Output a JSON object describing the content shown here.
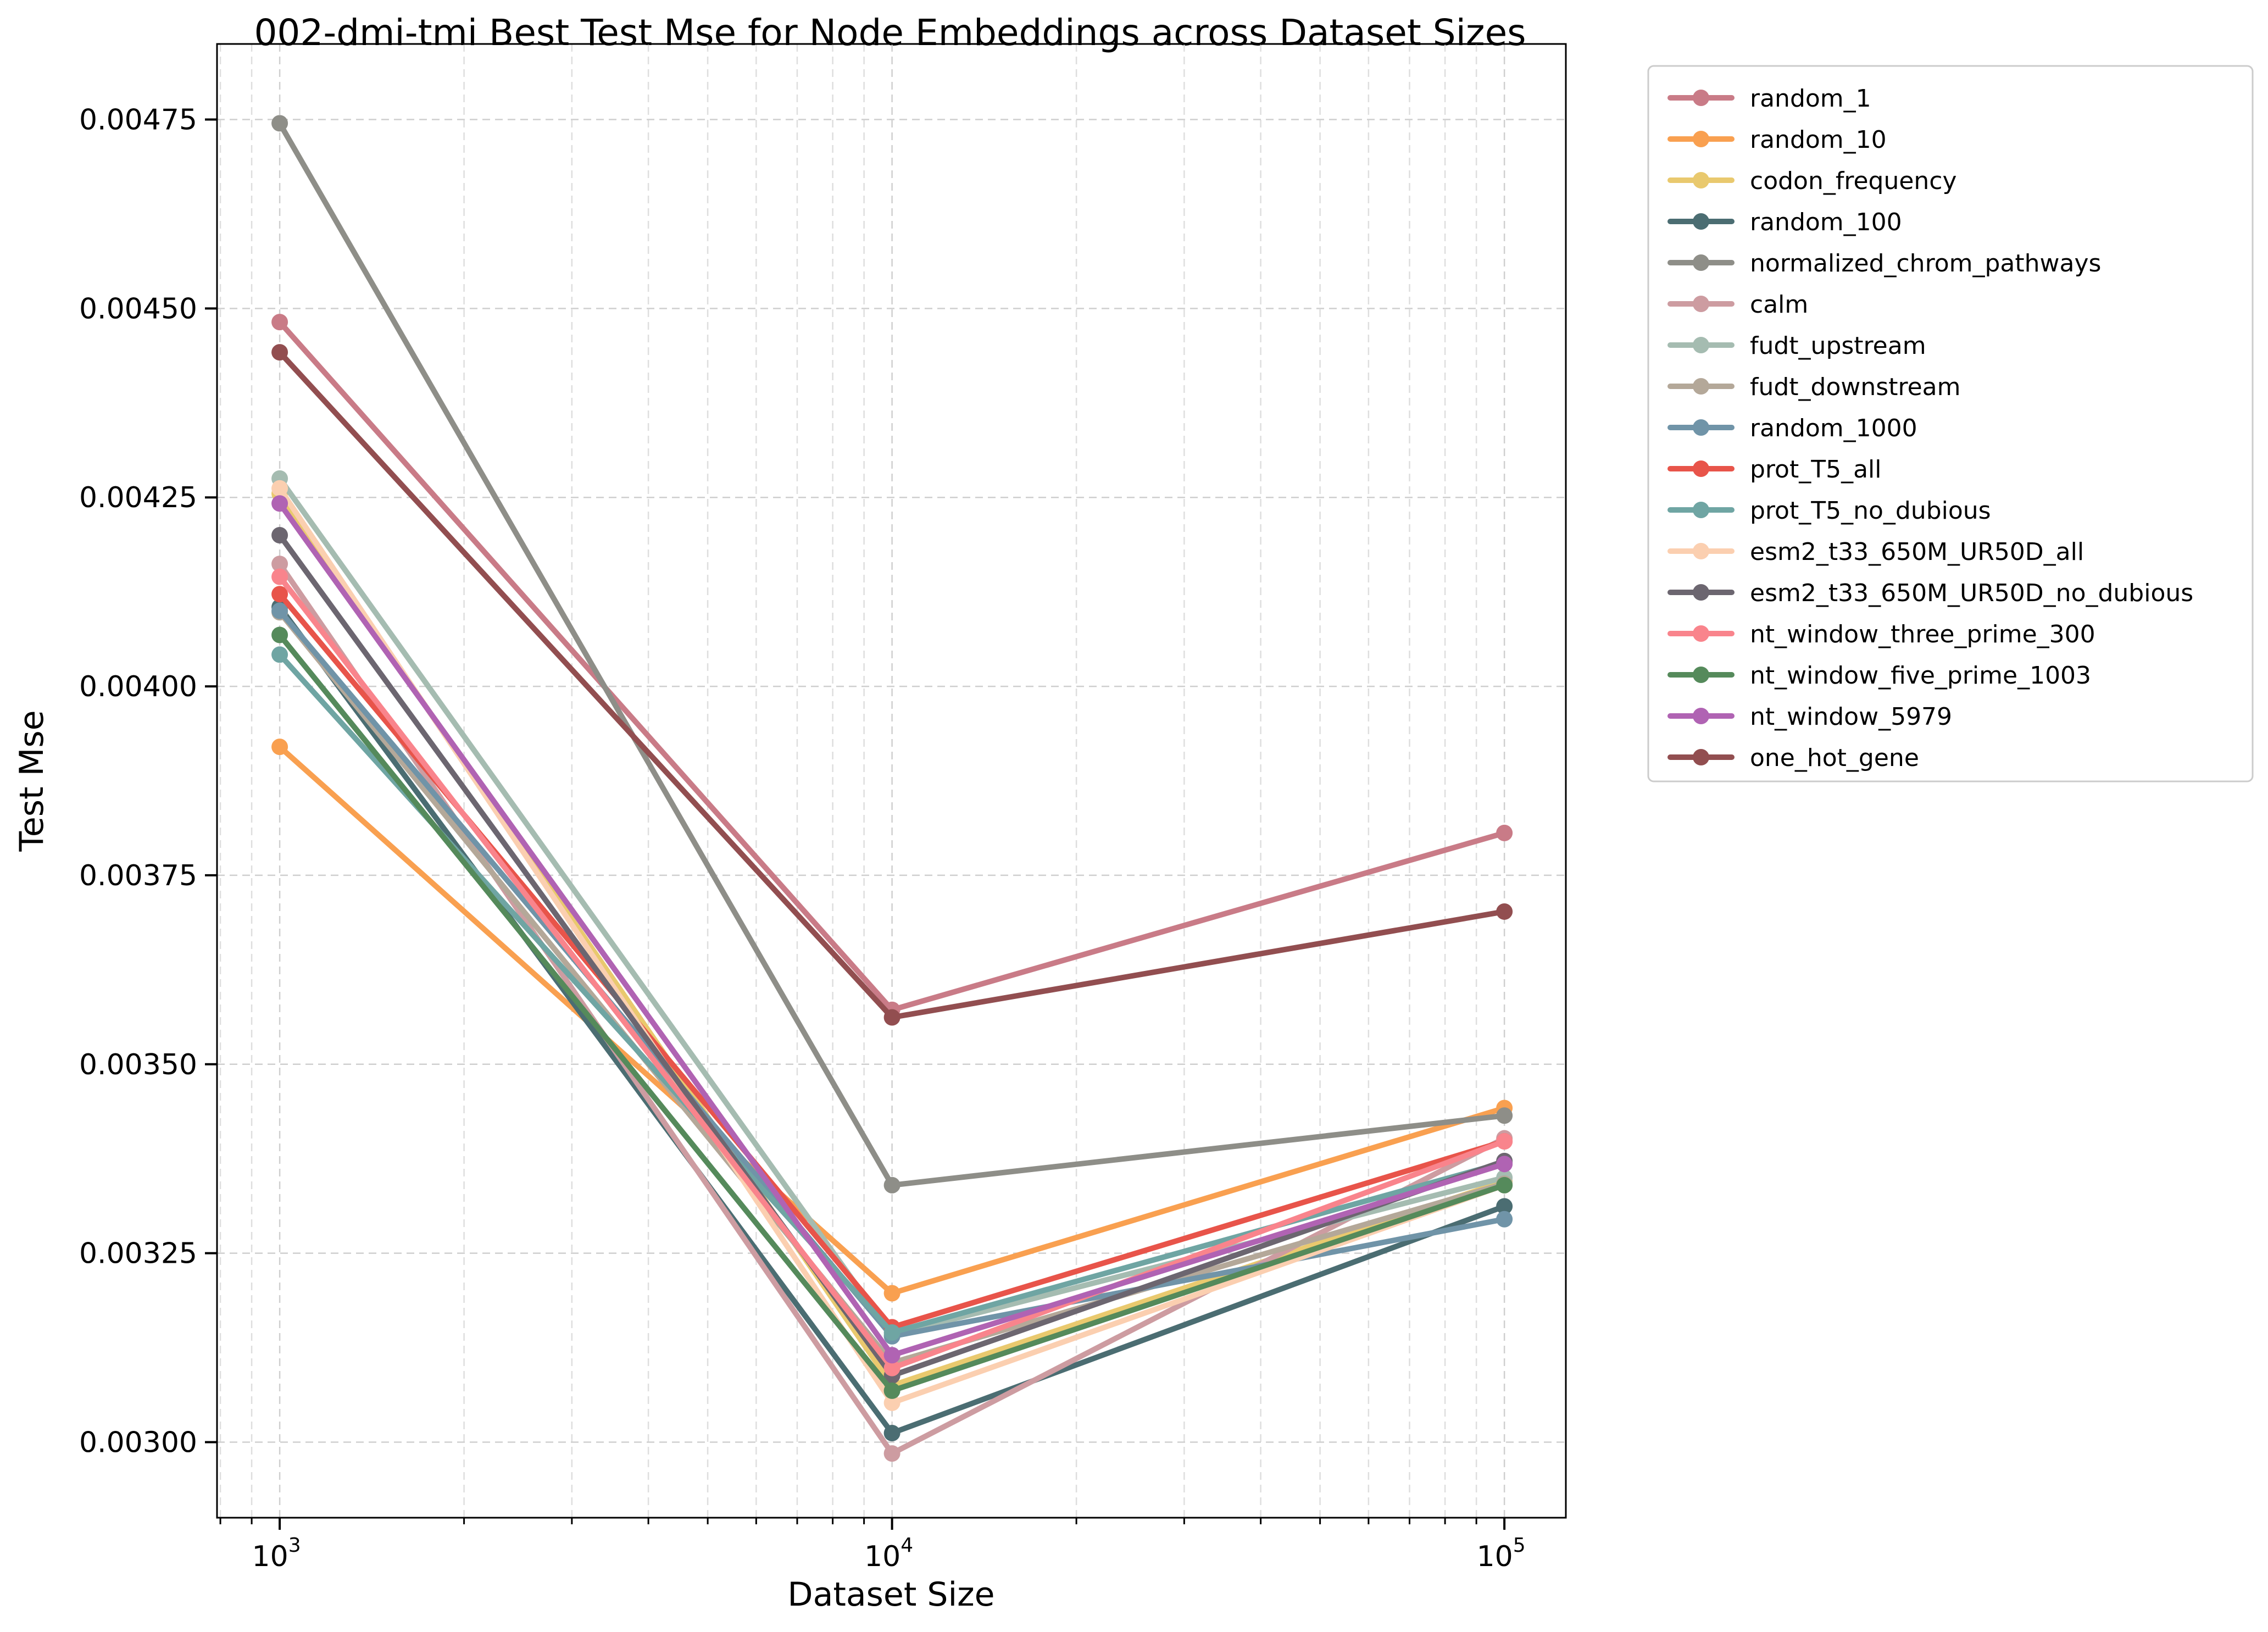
{
  "chart_data": {
    "type": "line",
    "title": "002-dmi-tmi Best Test Mse for Node Embeddings across Dataset Sizes",
    "xlabel": "Dataset Size",
    "ylabel": "Test Mse",
    "x_scale": "log",
    "x": [
      1000,
      10000,
      100000
    ],
    "x_ticks": [
      {
        "base": "10",
        "exp": "3"
      },
      {
        "base": "10",
        "exp": "4"
      },
      {
        "base": "10",
        "exp": "5"
      }
    ],
    "xlim": [
      790,
      126000
    ],
    "ylim": [
      0.0029,
      0.00485
    ],
    "y_ticks": [
      "0.00300",
      "0.00325",
      "0.00350",
      "0.00375",
      "0.00400",
      "0.00425",
      "0.00450",
      "0.00475"
    ],
    "grid": true,
    "legend_position": "outside-right",
    "series": [
      {
        "name": "random_1",
        "color": "#c97b87",
        "values": [
          0.004482,
          0.003572,
          0.003806
        ]
      },
      {
        "name": "random_10",
        "color": "#f9a050",
        "values": [
          0.00392,
          0.003197,
          0.003442
        ]
      },
      {
        "name": "codon_frequency",
        "color": "#e9c96e",
        "values": [
          0.004255,
          0.003075,
          0.003345
        ]
      },
      {
        "name": "random_100",
        "color": "#4b6d72",
        "values": [
          0.004105,
          0.003012,
          0.003312
        ]
      },
      {
        "name": "normalized_chrom_pathways",
        "color": "#8e8e88",
        "values": [
          0.004745,
          0.00334,
          0.003432
        ]
      },
      {
        "name": "calm",
        "color": "#cd9ca1",
        "values": [
          0.004162,
          0.002985,
          0.003402
        ]
      },
      {
        "name": "fudt_upstream",
        "color": "#a5bcb1",
        "values": [
          0.004275,
          0.003142,
          0.00335
        ]
      },
      {
        "name": "fudt_downstream",
        "color": "#b4a899",
        "values": [
          0.004098,
          0.003105,
          0.003342
        ]
      },
      {
        "name": "random_1000",
        "color": "#7094a8",
        "values": [
          0.0041,
          0.00314,
          0.003295
        ]
      },
      {
        "name": "prot_T5_all",
        "color": "#e8544a",
        "values": [
          0.004122,
          0.003152,
          0.003398
        ]
      },
      {
        "name": "prot_T5_no_dubious",
        "color": "#6fa5a3",
        "values": [
          0.004042,
          0.003145,
          0.00337
        ]
      },
      {
        "name": "esm2_t33_650M_UR50D_all",
        "color": "#fbcfb0",
        "values": [
          0.004262,
          0.003052,
          0.00334
        ]
      },
      {
        "name": "esm2_t33_650M_UR50D_no_dubious",
        "color": "#6c6670",
        "values": [
          0.0042,
          0.003088,
          0.003372
        ]
      },
      {
        "name": "nt_window_three_prime_300",
        "color": "#f9848c",
        "values": [
          0.004145,
          0.003098,
          0.003398
        ]
      },
      {
        "name": "nt_window_five_prime_1003",
        "color": "#558a5b",
        "values": [
          0.004068,
          0.003068,
          0.00334
        ]
      },
      {
        "name": "nt_window_5979",
        "color": "#b063b3",
        "values": [
          0.004242,
          0.003115,
          0.003368
        ]
      },
      {
        "name": "one_hot_gene",
        "color": "#924e50",
        "values": [
          0.004442,
          0.003562,
          0.003702
        ]
      }
    ]
  }
}
